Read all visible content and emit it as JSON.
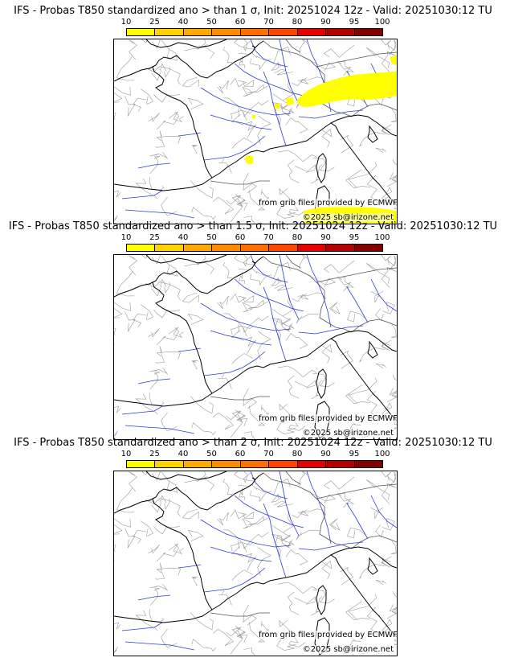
{
  "colorbar": {
    "ticks": [
      "10",
      "25",
      "40",
      "50",
      "60",
      "70",
      "80",
      "90",
      "95",
      "100"
    ],
    "colors": [
      "#ffff00",
      "#ffd200",
      "#ffaa00",
      "#ff8c00",
      "#ff6e00",
      "#ff4600",
      "#e60000",
      "#b40000",
      "#820000",
      "#500000"
    ]
  },
  "overlay_color": "#ffff00",
  "panels": [
    {
      "title": "IFS - Probas T850  standardized ano > than 1 σ, Init: 20251024 12z - Valid: 20251030:12 TU",
      "credit": "from grib files provided by ECMWF",
      "copyright": "©2025 sb@irizone.net",
      "has_probability_areas": true
    },
    {
      "title": "IFS - Probas T850  standardized ano > than 1.5 σ, Init: 20251024 12z - Valid: 20251030:12 TU",
      "credit": "from grib files provided by ECMWF",
      "copyright": "©2025 sb@irizone.net",
      "has_probability_areas": false
    },
    {
      "title": "IFS - Probas T850  standardized ano > than 2 σ, Init: 20251024 12z - Valid: 20251030:12 TU",
      "credit": "from grib files provided by ECMWF",
      "copyright": "©2025 sb@irizone.net",
      "has_probability_areas": false
    }
  ]
}
